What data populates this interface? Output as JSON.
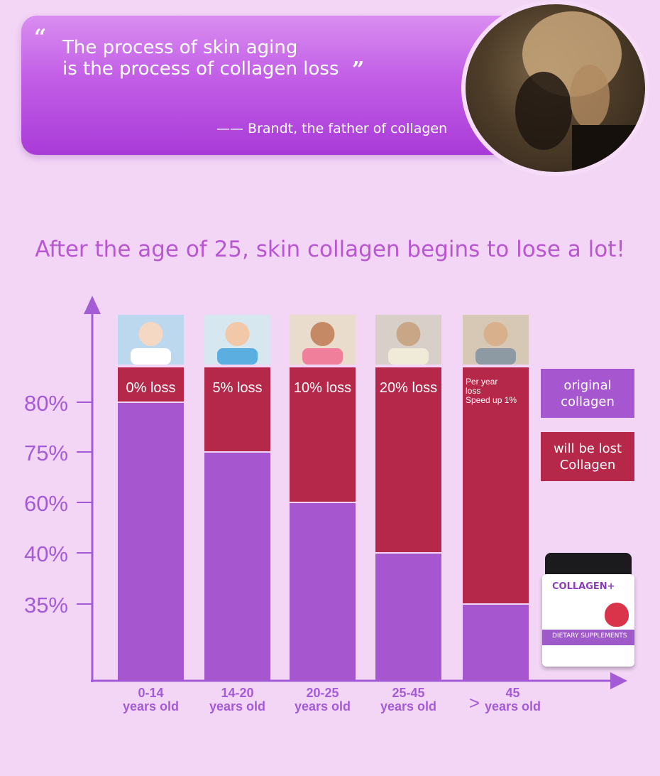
{
  "quote": {
    "open_mark": "“",
    "line1": "The process of skin aging",
    "line2": "is the process of collagen loss",
    "close_mark": "”",
    "attribution": "—— Brandt, the father of collagen"
  },
  "headline": "After the age of 25, skin collagen begins to lose a lot!",
  "colors": {
    "original": "#a657d0",
    "lost": "#b6284a",
    "axis": "#a35cd6",
    "headline": "#b956d2"
  },
  "legend": {
    "original_line1": "original",
    "original_line2": "collagen",
    "lost_line1": "will be lost",
    "lost_line2": "Collagen"
  },
  "product": {
    "title": "COLLAGEN+",
    "band": "DIETARY SUPPLEMENTS"
  },
  "chart_data": {
    "type": "bar",
    "categories": [
      "0-14 years old",
      "14-20 years old",
      "20-25 years old",
      "25-45 years old",
      "> 45 years old"
    ],
    "category_lines": [
      [
        "0-14",
        "years old"
      ],
      [
        "14-20",
        "years old"
      ],
      [
        "20-25",
        "years old"
      ],
      [
        "25-45",
        "years old"
      ],
      [
        ">",
        "45",
        "years old"
      ]
    ],
    "y_ticks": [
      {
        "value": 80,
        "label": "80%"
      },
      {
        "value": 75,
        "label": "75%"
      },
      {
        "value": 60,
        "label": "60%"
      },
      {
        "value": 40,
        "label": "40%"
      },
      {
        "value": 35,
        "label": "35%"
      }
    ],
    "series": [
      {
        "name": "original collagen",
        "values": [
          80,
          75,
          60,
          40,
          35
        ]
      },
      {
        "name": "will be lost Collagen",
        "values": [
          20,
          25,
          40,
          60,
          65
        ]
      }
    ],
    "loss_labels": [
      [
        "0% loss"
      ],
      [
        "5% loss"
      ],
      [
        "10% loss"
      ],
      [
        "20% loss"
      ],
      [
        "Per year",
        "loss",
        "Speed up 1%"
      ]
    ],
    "photos": [
      "baby-photo",
      "child-photo",
      "girl-photo",
      "woman-with-dog-photo",
      "elderly-couple-photo"
    ]
  }
}
